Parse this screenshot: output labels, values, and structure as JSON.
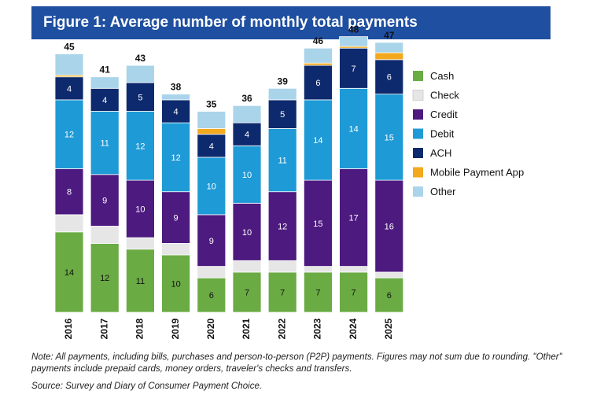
{
  "title": "Figure 1: Average number of monthly total payments",
  "note": "Note: All payments, including bills, purchases and person-to-person (P2P) payments. Figures may not sum due to rounding. \"Other\" payments include prepaid cards, money orders, traveler's checks and transfers.",
  "source": "Source: Survey and Diary of Consumer Payment Choice.",
  "chart_data": {
    "type": "bar",
    "stacked": true,
    "categories": [
      "2016",
      "2017",
      "2018",
      "2019",
      "2020",
      "2021",
      "2022",
      "2023",
      "2024",
      "2025"
    ],
    "totals": [
      45,
      41,
      43,
      38,
      35,
      36,
      39,
      46,
      48,
      47
    ],
    "series": [
      {
        "name": "Cash",
        "color": "#6aab44",
        "values": [
          14,
          12,
          11,
          10,
          6,
          7,
          7,
          7,
          7,
          6
        ],
        "labeled": [
          true,
          true,
          true,
          true,
          true,
          true,
          true,
          true,
          true,
          true
        ]
      },
      {
        "name": "Check",
        "color": "#e6e6e6",
        "values": [
          3,
          3,
          2,
          2,
          2,
          2,
          2,
          1,
          1,
          1
        ],
        "labeled": [
          false,
          false,
          false,
          false,
          false,
          false,
          false,
          false,
          false,
          false
        ]
      },
      {
        "name": "Credit",
        "color": "#4d1a7f",
        "values": [
          8,
          9,
          10,
          9,
          9,
          10,
          12,
          15,
          17,
          16
        ],
        "labeled": [
          true,
          true,
          true,
          true,
          true,
          true,
          true,
          true,
          true,
          true
        ]
      },
      {
        "name": "Debit",
        "color": "#1e9ad6",
        "values": [
          12,
          11,
          12,
          12,
          10,
          10,
          11,
          14,
          14,
          15
        ],
        "labeled": [
          true,
          true,
          true,
          true,
          true,
          true,
          true,
          true,
          true,
          true
        ]
      },
      {
        "name": "ACH",
        "color": "#0e2a6e",
        "values": [
          4,
          4,
          5,
          4,
          4,
          4,
          5,
          6,
          7,
          6
        ],
        "labeled": [
          true,
          true,
          true,
          true,
          true,
          true,
          true,
          true,
          true,
          true
        ]
      },
      {
        "name": "Mobile Payment App",
        "color": "#f2a91e",
        "values": [
          0.3,
          0,
          0,
          0,
          1,
          0,
          0,
          0.4,
          0.3,
          1.2
        ],
        "labeled": [
          false,
          false,
          false,
          false,
          false,
          false,
          false,
          false,
          false,
          false
        ]
      },
      {
        "name": "Other",
        "color": "#a9d4ea",
        "values": [
          3.7,
          2,
          3,
          1,
          3,
          3,
          2,
          2.6,
          1.7,
          1.8
        ],
        "labeled": [
          false,
          false,
          false,
          false,
          false,
          false,
          false,
          false,
          false,
          false
        ]
      }
    ],
    "ylim": [
      0,
      50
    ],
    "grid": false,
    "legend_position": "right"
  }
}
